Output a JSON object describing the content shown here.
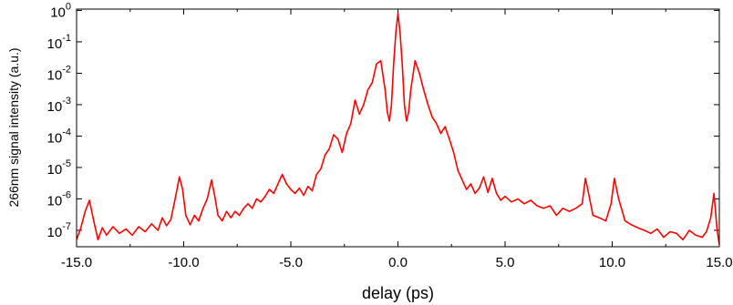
{
  "chart_data": {
    "type": "line",
    "title": "",
    "xlabel": "delay (ps)",
    "ylabel": "266nm signal intensity (a.u.)",
    "xlim": [
      -15.0,
      15.0
    ],
    "ylim": [
      3e-08,
      1.1
    ],
    "yscale": "log",
    "grid": false,
    "legend": "none",
    "x_ticks": [
      {
        "value": -15,
        "label": "-15.0"
      },
      {
        "value": -10,
        "label": "-10.0"
      },
      {
        "value": -5,
        "label": "-5.0"
      },
      {
        "value": 0,
        "label": "0.0"
      },
      {
        "value": 5,
        "label": "5.0"
      },
      {
        "value": 10,
        "label": "10.0"
      },
      {
        "value": 15,
        "label": "15.0"
      }
    ],
    "y_ticks": [
      {
        "value": 1e-07,
        "base": "10",
        "exp": "-7"
      },
      {
        "value": 1e-06,
        "base": "10",
        "exp": "-6"
      },
      {
        "value": 1e-05,
        "base": "10",
        "exp": "-5"
      },
      {
        "value": 0.0001,
        "base": "10",
        "exp": "-4"
      },
      {
        "value": 0.001,
        "base": "10",
        "exp": "-3"
      },
      {
        "value": 0.01,
        "base": "10",
        "exp": "-2"
      },
      {
        "value": 0.1,
        "base": "10",
        "exp": "-1"
      },
      {
        "value": 1,
        "base": "10",
        "exp": "0"
      }
    ],
    "series": [
      {
        "color": "#ff0000",
        "x": [
          -15.0,
          -14.8,
          -14.6,
          -14.4,
          -14.2,
          -14.0,
          -13.8,
          -13.6,
          -13.3,
          -13.0,
          -12.7,
          -12.4,
          -12.1,
          -11.8,
          -11.5,
          -11.2,
          -11.0,
          -10.8,
          -10.6,
          -10.4,
          -10.2,
          -10.05,
          -9.9,
          -9.7,
          -9.5,
          -9.3,
          -9.1,
          -8.9,
          -8.7,
          -8.55,
          -8.4,
          -8.2,
          -8.0,
          -7.8,
          -7.6,
          -7.4,
          -7.2,
          -7.0,
          -6.8,
          -6.6,
          -6.4,
          -6.2,
          -6.0,
          -5.8,
          -5.6,
          -5.4,
          -5.2,
          -5.0,
          -4.8,
          -4.6,
          -4.4,
          -4.2,
          -4.0,
          -3.8,
          -3.6,
          -3.4,
          -3.2,
          -3.0,
          -2.8,
          -2.6,
          -2.4,
          -2.2,
          -2.0,
          -1.8,
          -1.6,
          -1.4,
          -1.2,
          -1.0,
          -0.8,
          -0.6,
          -0.5,
          -0.4,
          -0.3,
          -0.2,
          -0.1,
          0.0,
          0.1,
          0.2,
          0.3,
          0.4,
          0.5,
          0.6,
          0.8,
          1.0,
          1.2,
          1.4,
          1.6,
          1.8,
          2.0,
          2.2,
          2.4,
          2.6,
          2.8,
          3.0,
          3.2,
          3.4,
          3.6,
          3.8,
          4.0,
          4.2,
          4.4,
          4.6,
          4.8,
          5.0,
          5.3,
          5.6,
          5.9,
          6.2,
          6.5,
          6.8,
          7.1,
          7.4,
          7.7,
          8.0,
          8.3,
          8.6,
          8.75,
          8.9,
          9.1,
          9.4,
          9.7,
          9.95,
          10.1,
          10.3,
          10.6,
          10.9,
          11.2,
          11.5,
          11.8,
          12.1,
          12.4,
          12.7,
          13.0,
          13.3,
          13.6,
          13.9,
          14.2,
          14.4,
          14.6,
          14.75,
          14.9,
          15.0
        ],
        "y": [
          5e-08,
          1.2e-07,
          4e-07,
          9e-07,
          2e-07,
          5e-08,
          1.2e-07,
          7e-08,
          1.3e-07,
          8e-08,
          1.1e-07,
          7e-08,
          1.3e-07,
          9e-08,
          1.6e-07,
          1e-07,
          2.5e-07,
          1.4e-07,
          2.2e-07,
          1e-06,
          5e-06,
          2e-06,
          3e-07,
          1.5e-07,
          3e-07,
          2e-07,
          5e-07,
          1e-06,
          4e-06,
          1.2e-06,
          3e-07,
          2e-07,
          4e-07,
          2.5e-07,
          4e-07,
          3e-07,
          5e-07,
          7e-07,
          5e-07,
          1e-06,
          8e-07,
          1.2e-06,
          2e-06,
          1.5e-06,
          3e-06,
          6e-06,
          3e-06,
          2e-06,
          1.5e-06,
          2.2e-06,
          1.3e-06,
          2.5e-06,
          1.8e-06,
          6e-06,
          9e-06,
          2.5e-05,
          4e-05,
          0.00011,
          8e-05,
          3e-05,
          0.00012,
          0.00025,
          0.0014,
          0.0005,
          0.001,
          0.003,
          0.005,
          0.02,
          0.025,
          0.003,
          0.0006,
          0.0003,
          0.001,
          0.02,
          0.2,
          0.8,
          0.2,
          0.02,
          0.001,
          0.0003,
          0.0006,
          0.003,
          0.025,
          0.01,
          0.003,
          0.001,
          0.0004,
          0.00025,
          0.00012,
          0.0002,
          8e-05,
          3e-05,
          8e-06,
          4e-06,
          2e-06,
          3e-06,
          1.5e-06,
          2.2e-06,
          5e-06,
          1.6e-06,
          4.5e-06,
          1.5e-06,
          9e-07,
          1.2e-06,
          8e-07,
          1e-06,
          7e-07,
          9e-07,
          6e-07,
          5e-07,
          6e-07,
          3e-07,
          5e-07,
          4e-07,
          5e-07,
          7e-07,
          4.5e-06,
          1.5e-06,
          3e-07,
          2.5e-07,
          2e-07,
          7e-07,
          4.5e-06,
          1e-06,
          2e-07,
          1.5e-07,
          1.2e-07,
          1e-07,
          8e-08,
          1.1e-07,
          6e-08,
          9e-08,
          8e-08,
          5e-08,
          1e-07,
          7e-08,
          6e-08,
          9e-08,
          2.5e-07,
          1.5e-06,
          1e-07,
          3.5e-08
        ]
      }
    ]
  }
}
